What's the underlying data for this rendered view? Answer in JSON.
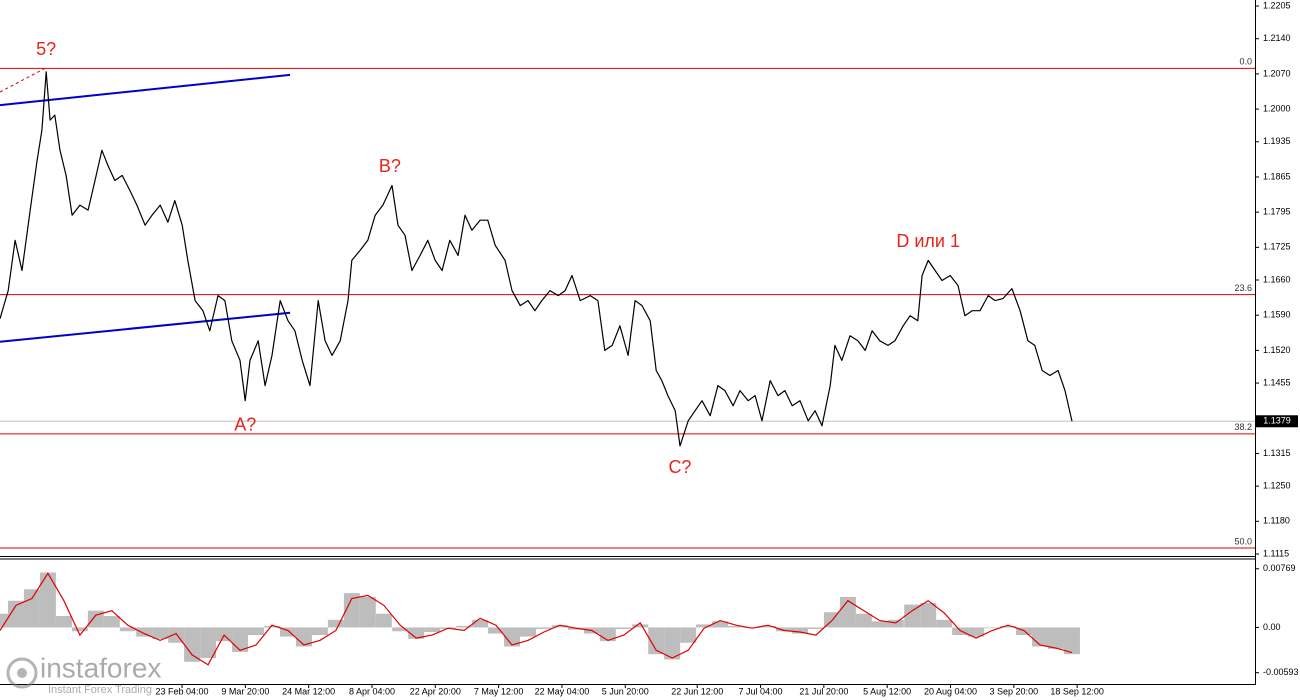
{
  "chart_data": [
    {
      "type": "line",
      "xlim": [
        11,
        301.7
      ],
      "ylim": [
        1.1111,
        1.2217
      ],
      "xticks": [
        {
          "value": 53.167,
          "label": "23 Feb 04:00"
        },
        {
          "value": 67.833,
          "label": "9 Mar 20:00"
        },
        {
          "value": 82.5,
          "label": "24 Mar 12:00"
        },
        {
          "value": 97.167,
          "label": "8 Apr 04:00"
        },
        {
          "value": 111.833,
          "label": "22 Apr 20:00"
        },
        {
          "value": 126.5,
          "label": "7 May 12:00"
        },
        {
          "value": 141.167,
          "label": "22 May 04:00"
        },
        {
          "value": 155.833,
          "label": "5 Jun 20:00"
        },
        {
          "value": 172.5,
          "label": "22 Jun 12:00"
        },
        {
          "value": 187.167,
          "label": "7 Jul 04:00"
        },
        {
          "value": 201.833,
          "label": "21 Jul 20:00"
        },
        {
          "value": 216.5,
          "label": "5 Aug 12:00"
        },
        {
          "value": 231.167,
          "label": "20 Aug 04:00"
        },
        {
          "value": 245.833,
          "label": "3 Sep 20:00"
        },
        {
          "value": 260.5,
          "label": "18 Sep 12:00"
        }
      ],
      "yticks": [
        1.2205,
        {
          "value": 1.214,
          "label": "1.2140"
        },
        {
          "value": 1.207,
          "label": "1.2070"
        },
        {
          "value": 1.2,
          "label": "1.2000"
        },
        1.1935,
        1.1865,
        1.1795,
        1.1725,
        {
          "value": 1.166,
          "label": "1.1660"
        },
        {
          "value": 1.159,
          "label": "1.1590"
        },
        {
          "value": 1.152,
          "label": "1.1520"
        },
        1.1455,
        1.1315,
        {
          "value": 1.125,
          "label": "1.1250"
        },
        {
          "value": 1.118,
          "label": "1.1180"
        },
        1.1115
      ],
      "series": [
        {
          "color": "#000000",
          "x": [
            11.0,
            12.9,
            14.5,
            16.1,
            18.0,
            19.6,
            20.7,
            21.7,
            22.6,
            23.7,
            24.9,
            26.3,
            27.7,
            29.5,
            31.4,
            33.0,
            34.6,
            36.0,
            37.6,
            39.3,
            41.1,
            42.7,
            44.6,
            46.2,
            48.1,
            49.9,
            51.5,
            53.2,
            54.5,
            56.2,
            58.0,
            59.6,
            61.5,
            63.1,
            64.7,
            66.6,
            67.8,
            68.9,
            70.8,
            72.4,
            74.0,
            75.9,
            77.7,
            79.3,
            81.0,
            82.8,
            84.7,
            86.3,
            87.9,
            89.8,
            91.6,
            92.5,
            94.4,
            96.2,
            97.9,
            99.7,
            101.8,
            103.2,
            104.8,
            106.4,
            108.3,
            110.1,
            111.8,
            113.4,
            115.2,
            117.1,
            118.7,
            120.3,
            122.2,
            124.0,
            125.7,
            128.0,
            129.6,
            131.5,
            133.3,
            134.9,
            136.5,
            138.4,
            140.3,
            141.9,
            143.5,
            145.4,
            147.7,
            149.5,
            151.1,
            152.8,
            154.6,
            156.5,
            158.1,
            159.7,
            161.6,
            163.0,
            164.3,
            165.7,
            167.4,
            168.5,
            170.4,
            172.0,
            173.6,
            175.5,
            177.3,
            178.9,
            180.8,
            182.4,
            184.3,
            185.9,
            187.5,
            189.4,
            191.2,
            192.8,
            194.5,
            196.3,
            198.2,
            199.8,
            201.4,
            203.3,
            204.4,
            206.0,
            207.9,
            209.7,
            211.4,
            213.0,
            214.8,
            216.7,
            218.3,
            220.2,
            221.8,
            223.6,
            224.6,
            226.0,
            227.6,
            229.2,
            231.1,
            232.9,
            234.5,
            236.2,
            238.0,
            239.9,
            241.5,
            243.3,
            245.4,
            247.3,
            249.1,
            250.7,
            252.4,
            254.2,
            256.1,
            257.7,
            259.3
          ],
          "values": [
            1.1583,
            1.1639,
            1.1739,
            1.1679,
            1.1799,
            1.1898,
            1.1958,
            1.2074,
            1.1978,
            1.1988,
            1.1918,
            1.1868,
            1.1789,
            1.1809,
            1.1799,
            1.1858,
            1.1918,
            1.1888,
            1.1858,
            1.1868,
            1.1838,
            1.1809,
            1.1769,
            1.1789,
            1.1809,
            1.1775,
            1.1818,
            1.1769,
            1.1699,
            1.1619,
            1.1599,
            1.1559,
            1.1629,
            1.1619,
            1.1539,
            1.15,
            1.142,
            1.15,
            1.1539,
            1.145,
            1.151,
            1.1619,
            1.1579,
            1.1559,
            1.15,
            1.145,
            1.1619,
            1.1539,
            1.151,
            1.1539,
            1.1619,
            1.1699,
            1.1719,
            1.1739,
            1.1789,
            1.1809,
            1.1848,
            1.1769,
            1.1749,
            1.1679,
            1.1709,
            1.1739,
            1.1699,
            1.1679,
            1.1739,
            1.1709,
            1.1789,
            1.1759,
            1.1779,
            1.1779,
            1.1729,
            1.1699,
            1.1639,
            1.1609,
            1.1619,
            1.1599,
            1.1619,
            1.1639,
            1.1629,
            1.1639,
            1.1669,
            1.1619,
            1.1629,
            1.1619,
            1.152,
            1.153,
            1.1569,
            1.151,
            1.1619,
            1.1609,
            1.1579,
            1.148,
            1.146,
            1.143,
            1.14,
            1.133,
            1.138,
            1.14,
            1.142,
            1.139,
            1.145,
            1.144,
            1.141,
            1.144,
            1.142,
            1.143,
            1.138,
            1.146,
            1.143,
            1.144,
            1.141,
            1.142,
            1.138,
            1.14,
            1.137,
            1.145,
            1.153,
            1.15,
            1.1549,
            1.1539,
            1.152,
            1.1559,
            1.1539,
            1.153,
            1.1539,
            1.1569,
            1.1589,
            1.1579,
            1.1669,
            1.1699,
            1.1679,
            1.1659,
            1.1669,
            1.1649,
            1.1589,
            1.1599,
            1.1599,
            1.1629,
            1.1619,
            1.1623,
            1.1643,
            1.1599,
            1.1539,
            1.153,
            1.148,
            1.147,
            1.148,
            1.144,
            1.1379
          ]
        }
      ],
      "current_price": 1.1379,
      "current_color": "#c0c0c0",
      "levels": [
        {
          "name": "0.0",
          "value": 1.2081
        },
        {
          "name": "23.6",
          "value": 1.1631
        },
        {
          "name": "38.2",
          "value": 1.1354
        },
        {
          "name": "50.0",
          "value": 1.1127
        }
      ],
      "level_color": "#e00000",
      "lines": [
        {
          "color": "#0000cc",
          "x": [
            11,
            78.2
          ],
          "values": [
            1.2008,
            1.2068
          ]
        },
        {
          "color": "#0000cc",
          "x": [
            11,
            78.2
          ],
          "values": [
            1.1537,
            1.1595
          ]
        },
        {
          "color": "#e00000",
          "dashed": true,
          "x": [
            11,
            21.4
          ],
          "values": [
            1.2034,
            1.2081
          ]
        }
      ],
      "annotations": [
        {
          "text": "5?",
          "x": 21.7,
          "y": 1.2117
        },
        {
          "text": "B?",
          "x": 101.3,
          "y": 1.1884
        },
        {
          "text": "A?",
          "x": 67.8,
          "y": 1.137
        },
        {
          "text": "C?",
          "x": 168.5,
          "y": 1.1286
        },
        {
          "text": "D или 1",
          "x": 226.0,
          "y": 1.1735
        }
      ],
      "annotation_color": "#e8231a"
    },
    {
      "type": "bar",
      "xlim": [
        11,
        301.7
      ],
      "ylim": [
        -0.00741,
        0.00897
      ],
      "yticks": [
        0.00769,
        {
          "value": 0,
          "label": "0.00"
        },
        -0.00593
      ],
      "x": [
        11.0,
        14.7,
        18.4,
        22.1,
        25.8,
        29.5,
        33.2,
        36.9,
        40.6,
        44.4,
        48.1,
        51.8,
        55.5,
        59.2,
        62.9,
        66.6,
        70.3,
        74.0,
        77.7,
        81.4,
        85.1,
        88.8,
        92.5,
        96.2,
        99.9,
        103.7,
        107.4,
        111.1,
        114.8,
        118.5,
        122.2,
        125.9,
        129.6,
        133.3,
        137.0,
        140.7,
        144.4,
        148.1,
        151.8,
        155.5,
        159.3,
        163.0,
        166.7,
        170.4,
        174.1,
        177.8,
        181.5,
        185.2,
        188.9,
        192.6,
        196.3,
        200.0,
        203.7,
        207.4,
        211.1,
        214.8,
        218.5,
        222.3,
        226.0,
        229.7,
        233.4,
        237.1,
        240.8,
        244.5,
        248.2,
        251.9,
        255.6,
        259.3
      ],
      "series": [
        {
          "style": "bar",
          "color": "#bdbdbd",
          "values": [
            0.0018,
            0.0035,
            0.005,
            0.0072,
            0.0015,
            -0.0005,
            0.0022,
            0.0015,
            -0.0005,
            -0.0012,
            -0.0015,
            -0.002,
            -0.0045,
            -0.004,
            -0.0018,
            -0.0032,
            -0.001,
            0.0002,
            -0.0012,
            -0.0025,
            -0.001,
            0.001,
            0.0045,
            0.004,
            0.0018,
            -0.0005,
            -0.0015,
            -0.0006,
            -0.0002,
            0.0002,
            0.001,
            -0.0008,
            -0.0025,
            -0.0012,
            -0.0002,
            0.0003,
            -0.0003,
            -0.0008,
            -0.0018,
            -0.0002,
            0.0004,
            -0.0035,
            -0.0042,
            -0.002,
            0.0004,
            0.0008,
            0.0002,
            0,
            0.0002,
            -0.0005,
            -0.0008,
            -0.0002,
            0.002,
            0.004,
            0.0018,
            0.0008,
            0.001,
            0.003,
            0.0032,
            0.001,
            -0.001,
            -0.0012,
            -0.0001,
            0.0002,
            -0.001,
            -0.0025,
            -0.0028,
            -0.0035
          ]
        },
        {
          "style": "line",
          "color": "#e00000",
          "values": [
            -0.0004,
            0.0029,
            0.0038,
            0.0071,
            0.0035,
            -0.001,
            0.0016,
            0.0022,
            0.0003,
            -0.0008,
            -0.0017,
            -0.0008,
            -0.0036,
            -0.0049,
            -0.001,
            -0.003,
            -0.0023,
            0.0003,
            -0.0004,
            -0.0023,
            -0.0017,
            -0.0004,
            0.0038,
            0.0042,
            0.0029,
            0.0003,
            -0.0014,
            -0.001,
            -0.0001,
            -0.0004,
            0.0012,
            0.0003,
            -0.0023,
            -0.0017,
            -0.0006,
            0.0003,
            -0.0001,
            -0.0004,
            -0.0017,
            -0.001,
            0.0006,
            -0.003,
            -0.004,
            -0.003,
            -0.0001,
            0.0009,
            0.0003,
            -0.0001,
            0.0003,
            -0.0004,
            -0.0006,
            -0.001,
            0.0009,
            0.0035,
            0.0022,
            0.0009,
            0.0006,
            0.0022,
            0.0035,
            0.0019,
            -0.0004,
            -0.0014,
            -0.0004,
            0.0003,
            -0.0004,
            -0.0023,
            -0.0027,
            -0.0033
          ]
        }
      ]
    }
  ],
  "watermark": {
    "title": "instaforex",
    "subtitle": "Instant Forex Trading"
  }
}
